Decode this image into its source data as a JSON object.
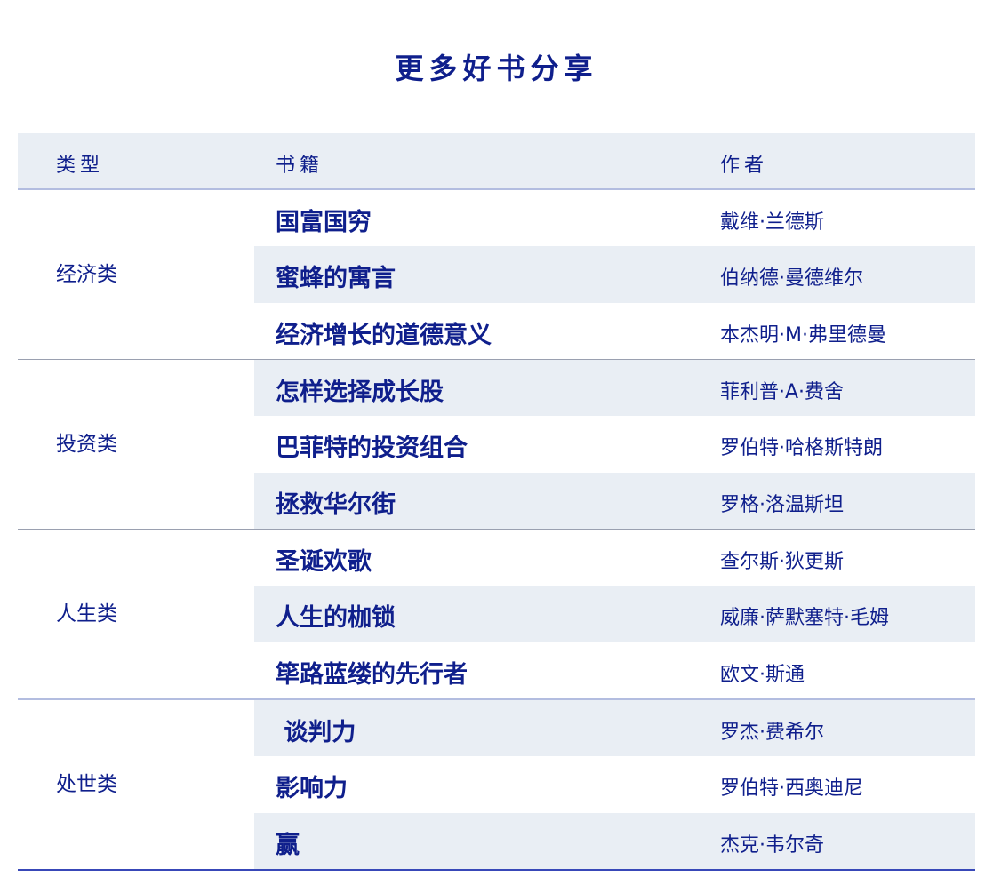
{
  "title": "更多好书分享",
  "header": {
    "type": "类型",
    "book": "书籍",
    "author": "作者"
  },
  "groups": [
    {
      "type": "经济类",
      "rows": [
        {
          "book": "国富国穷",
          "author": "戴维·兰德斯"
        },
        {
          "book": "蜜蜂的寓言",
          "author": "伯纳德·曼德维尔"
        },
        {
          "book": "经济增长的道德意义",
          "author": "本杰明·M·弗里德曼"
        }
      ]
    },
    {
      "type": "投资类",
      "rows": [
        {
          "book": "怎样选择成长股",
          "author": "菲利普·A·费舍"
        },
        {
          "book": "巴菲特的投资组合",
          "author": "罗伯特·哈格斯特朗"
        },
        {
          "book": "拯救华尔街",
          "author": "罗格·洛温斯坦"
        }
      ]
    },
    {
      "type": "人生类",
      "rows": [
        {
          "book": "圣诞欢歌",
          "author": "查尔斯·狄更斯"
        },
        {
          "book": "人生的枷锁",
          "author": "威廉·萨默塞特·毛姆"
        },
        {
          "book": "筚路蓝缕的先行者",
          "author": "欧文·斯通"
        }
      ]
    },
    {
      "type": "处世类",
      "rows": [
        {
          "book": " 谈判力",
          "author": "罗杰·费希尔"
        },
        {
          "book": "影响力",
          "author": "罗伯特·西奥迪尼"
        },
        {
          "book": "赢",
          "author": "杰克·韦尔奇"
        }
      ]
    }
  ]
}
